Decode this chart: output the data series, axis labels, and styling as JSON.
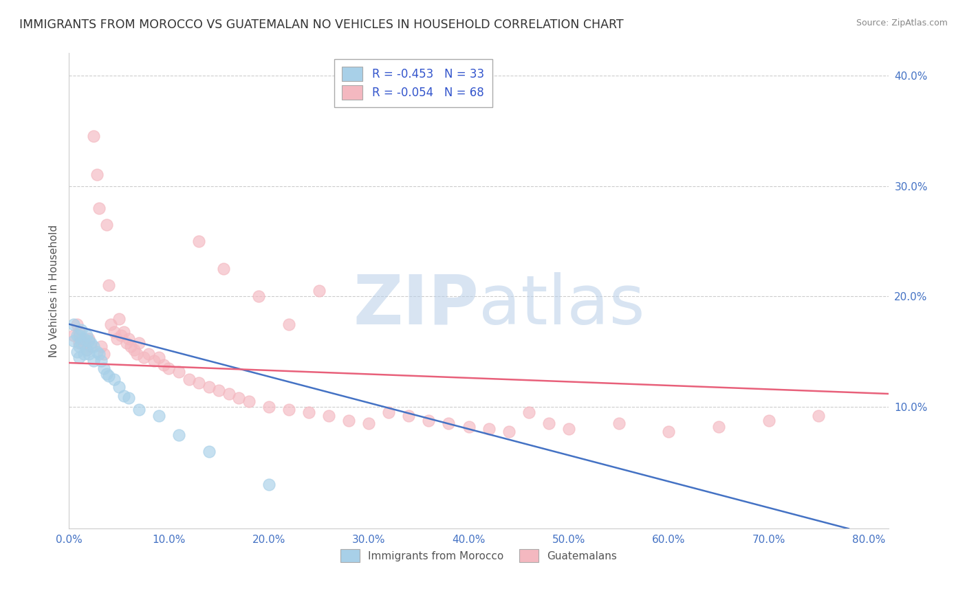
{
  "title": "IMMIGRANTS FROM MOROCCO VS GUATEMALAN NO VEHICLES IN HOUSEHOLD CORRELATION CHART",
  "source": "Source: ZipAtlas.com",
  "ylabel": "No Vehicles in Household",
  "xlim": [
    0.0,
    0.82
  ],
  "ylim": [
    -0.01,
    0.42
  ],
  "xticks": [
    0.0,
    0.1,
    0.2,
    0.3,
    0.4,
    0.5,
    0.6,
    0.7,
    0.8
  ],
  "xticklabels": [
    "0.0%",
    "10.0%",
    "20.0%",
    "30.0%",
    "40.0%",
    "50.0%",
    "60.0%",
    "70.0%",
    "80.0%"
  ],
  "yticks": [
    0.1,
    0.2,
    0.3,
    0.4
  ],
  "yticklabels": [
    "10.0%",
    "20.0%",
    "30.0%",
    "40.0%"
  ],
  "legend1_label": "R = -0.453   N = 33",
  "legend2_label": "R = -0.054   N = 68",
  "legend3_label": "Immigrants from Morocco",
  "legend4_label": "Guatemalans",
  "blue_color": "#a8d0e8",
  "pink_color": "#f4b8c0",
  "blue_line_color": "#4472c4",
  "pink_line_color": "#e8607a",
  "blue_scatter_x": [
    0.005,
    0.005,
    0.008,
    0.008,
    0.01,
    0.01,
    0.01,
    0.012,
    0.012,
    0.015,
    0.015,
    0.018,
    0.018,
    0.02,
    0.02,
    0.022,
    0.025,
    0.025,
    0.028,
    0.03,
    0.032,
    0.035,
    0.038,
    0.04,
    0.045,
    0.05,
    0.055,
    0.06,
    0.07,
    0.09,
    0.11,
    0.14,
    0.2
  ],
  "blue_scatter_y": [
    0.175,
    0.16,
    0.165,
    0.15,
    0.165,
    0.155,
    0.145,
    0.17,
    0.158,
    0.162,
    0.148,
    0.165,
    0.152,
    0.16,
    0.148,
    0.158,
    0.155,
    0.142,
    0.15,
    0.148,
    0.142,
    0.135,
    0.13,
    0.128,
    0.125,
    0.118,
    0.11,
    0.108,
    0.098,
    0.092,
    0.075,
    0.06,
    0.03
  ],
  "pink_scatter_x": [
    0.005,
    0.008,
    0.01,
    0.01,
    0.012,
    0.015,
    0.018,
    0.02,
    0.022,
    0.025,
    0.028,
    0.03,
    0.032,
    0.035,
    0.038,
    0.04,
    0.042,
    0.045,
    0.048,
    0.05,
    0.052,
    0.055,
    0.058,
    0.06,
    0.062,
    0.065,
    0.068,
    0.07,
    0.075,
    0.08,
    0.085,
    0.09,
    0.095,
    0.1,
    0.11,
    0.12,
    0.13,
    0.14,
    0.15,
    0.16,
    0.17,
    0.18,
    0.2,
    0.22,
    0.24,
    0.26,
    0.28,
    0.3,
    0.32,
    0.34,
    0.36,
    0.38,
    0.4,
    0.42,
    0.44,
    0.46,
    0.48,
    0.5,
    0.55,
    0.6,
    0.65,
    0.7,
    0.75,
    0.13,
    0.155,
    0.19,
    0.22,
    0.25
  ],
  "pink_scatter_y": [
    0.165,
    0.175,
    0.158,
    0.168,
    0.162,
    0.158,
    0.152,
    0.162,
    0.155,
    0.345,
    0.31,
    0.28,
    0.155,
    0.148,
    0.265,
    0.21,
    0.175,
    0.168,
    0.162,
    0.18,
    0.165,
    0.168,
    0.158,
    0.162,
    0.155,
    0.152,
    0.148,
    0.158,
    0.145,
    0.148,
    0.142,
    0.145,
    0.138,
    0.135,
    0.132,
    0.125,
    0.122,
    0.118,
    0.115,
    0.112,
    0.108,
    0.105,
    0.1,
    0.098,
    0.095,
    0.092,
    0.088,
    0.085,
    0.095,
    0.092,
    0.088,
    0.085,
    0.082,
    0.08,
    0.078,
    0.095,
    0.085,
    0.08,
    0.085,
    0.078,
    0.082,
    0.088,
    0.092,
    0.25,
    0.225,
    0.2,
    0.175,
    0.205
  ],
  "blue_line_x": [
    0.0,
    0.78
  ],
  "blue_line_y": [
    0.175,
    -0.01
  ],
  "pink_line_x": [
    0.0,
    0.82
  ],
  "pink_line_y": [
    0.14,
    0.112
  ],
  "background_color": "#ffffff",
  "grid_color": "#cccccc",
  "title_color": "#333333",
  "tick_color": "#4472c4"
}
